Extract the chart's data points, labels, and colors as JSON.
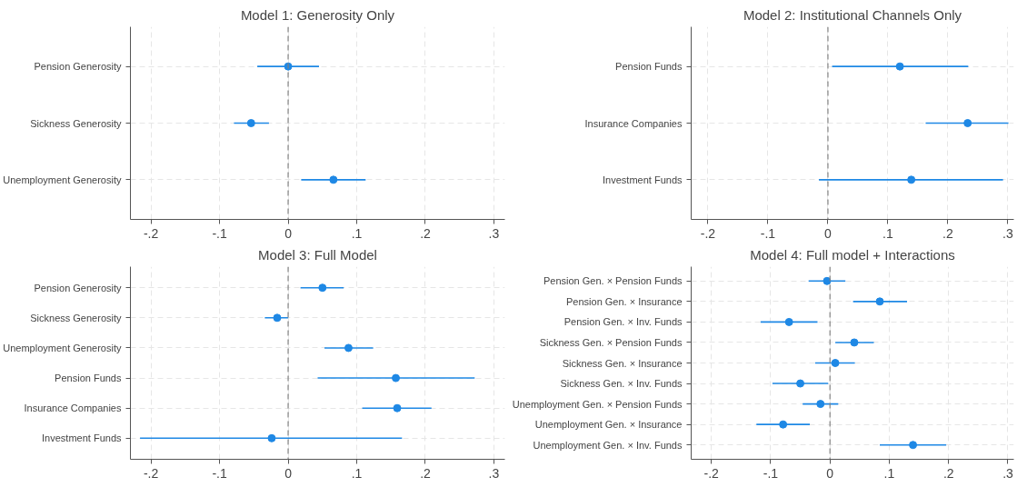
{
  "chart_data": [
    {
      "type": "scatter",
      "orientation": "horizontal",
      "title": "Model 1: Generosity Only",
      "categories": [
        "Pension Generosity",
        "Sickness Generosity",
        "Unemployment Generosity"
      ],
      "color": "#1e88e5",
      "values": [
        0.0,
        -0.054,
        0.066
      ],
      "errors": [
        [
          -0.045,
          0.045
        ],
        [
          -0.079,
          -0.028
        ],
        [
          0.019,
          0.113
        ]
      ],
      "xlim": [
        -0.23,
        0.316
      ],
      "xticks": [
        {
          "value": -0.2,
          "label": "-.2"
        },
        {
          "value": -0.1,
          "label": "-.1"
        },
        0,
        {
          "value": 0.1,
          "label": ".1"
        },
        {
          "value": 0.2,
          "label": ".2"
        },
        {
          "value": 0.3,
          "label": ".3"
        }
      ],
      "ref_lines": [
        {
          "axis": "x",
          "value": 0,
          "color": "#808080",
          "line_style": "dashed"
        }
      ],
      "grid": true,
      "marker": "circle"
    },
    {
      "type": "scatter",
      "orientation": "horizontal",
      "title": "Model 2: Institutional Channels Only",
      "categories": [
        "Pension Funds",
        "Insurance Companies",
        "Investment Funds"
      ],
      "color": "#1e88e5",
      "values": [
        0.12,
        0.233,
        0.139
      ],
      "errors": [
        [
          0.007,
          0.234
        ],
        [
          0.163,
          0.301
        ],
        [
          -0.015,
          0.292
        ]
      ],
      "xlim": [
        -0.228,
        0.31
      ],
      "xticks": [
        {
          "value": -0.2,
          "label": "-.2"
        },
        {
          "value": -0.1,
          "label": "-.1"
        },
        0,
        {
          "value": 0.1,
          "label": ".1"
        },
        {
          "value": 0.2,
          "label": ".2"
        },
        {
          "value": 0.3,
          "label": ".3"
        }
      ],
      "ref_lines": [
        {
          "axis": "x",
          "value": 0,
          "color": "#808080",
          "line_style": "dashed"
        }
      ],
      "grid": true,
      "marker": "circle"
    },
    {
      "type": "scatter",
      "orientation": "horizontal",
      "title": "Model 3: Full Model",
      "categories": [
        "Pension Generosity",
        "Sickness Generosity",
        "Unemployment Generosity",
        "Pension Funds",
        "Insurance Companies",
        "Investment Funds"
      ],
      "color": "#1e88e5",
      "values": [
        0.05,
        -0.016,
        0.088,
        0.157,
        0.159,
        -0.024
      ],
      "errors": [
        [
          0.018,
          0.081
        ],
        [
          -0.034,
          0.0
        ],
        [
          0.053,
          0.124
        ],
        [
          0.043,
          0.272
        ],
        [
          0.108,
          0.209
        ],
        [
          -0.216,
          0.166
        ]
      ],
      "xlim": [
        -0.23,
        0.316
      ],
      "xticks": [
        {
          "value": -0.2,
          "label": "-.2"
        },
        {
          "value": -0.1,
          "label": "-.1"
        },
        0,
        {
          "value": 0.1,
          "label": ".1"
        },
        {
          "value": 0.2,
          "label": ".2"
        },
        {
          "value": 0.3,
          "label": ".3"
        }
      ],
      "ref_lines": [
        {
          "axis": "x",
          "value": 0,
          "color": "#808080",
          "line_style": "dashed"
        }
      ],
      "grid": true,
      "marker": "circle"
    },
    {
      "type": "scatter",
      "orientation": "horizontal",
      "title": "Model 4: Full model + Interactions",
      "categories": [
        "Pension Gen. × Pension Funds",
        "Pension Gen. × Insurance",
        "Pension Gen. × Inv. Funds",
        "Sickness Gen. × Pension Funds",
        "Sickness Gen. × Insurance",
        "Sickness Gen. × Inv. Funds",
        "Unemployment Gen. × Pension Funds",
        "Unemployment Gen. × Insurance",
        "Unemployment Gen. × Inv. Funds"
      ],
      "color": "#1e88e5",
      "values": [
        -0.005,
        0.084,
        -0.069,
        0.041,
        0.009,
        -0.05,
        -0.016,
        -0.079,
        0.14
      ],
      "errors": [
        [
          -0.036,
          0.026
        ],
        [
          0.039,
          0.13
        ],
        [
          -0.117,
          -0.021
        ],
        [
          0.009,
          0.074
        ],
        [
          -0.025,
          0.042
        ],
        [
          -0.097,
          -0.003
        ],
        [
          -0.046,
          0.014
        ],
        [
          -0.124,
          -0.034
        ],
        [
          0.084,
          0.196
        ]
      ],
      "xlim": [
        -0.234,
        0.31
      ],
      "xticks": [
        {
          "value": -0.2,
          "label": "-.2"
        },
        {
          "value": -0.1,
          "label": "-.1"
        },
        0,
        {
          "value": 0.1,
          "label": ".1"
        },
        {
          "value": 0.2,
          "label": ".2"
        },
        {
          "value": 0.3,
          "label": ".3"
        }
      ],
      "ref_lines": [
        {
          "axis": "x",
          "value": 0,
          "color": "#808080",
          "line_style": "dashed"
        }
      ],
      "grid": true,
      "marker": "circle"
    }
  ]
}
